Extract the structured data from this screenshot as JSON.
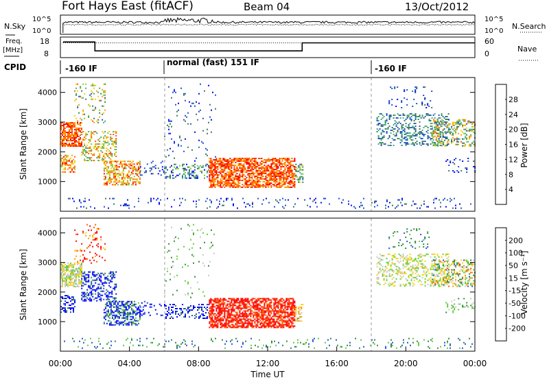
{
  "header": {
    "title": "Fort Hays East (fitACF)",
    "beam": "Beam 04",
    "date": "13/Oct/2012"
  },
  "noise_panel": {
    "left_label": "N.Sky",
    "right_label": "N.Search",
    "left_ticks": [
      "10^5",
      "10^0"
    ],
    "right_ticks": [
      "10^5",
      "10^0"
    ]
  },
  "freq_panel": {
    "left_label_line1": "Freq.",
    "left_label_line2": "[MHz]",
    "right_label": "Nave",
    "left_ticks": [
      "18",
      "8"
    ],
    "right_ticks": [
      "60",
      "0"
    ]
  },
  "cpid": {
    "label": "CPID",
    "segments": [
      {
        "start_hour": 0,
        "text": "-160 IF"
      },
      {
        "start_hour": 6,
        "text": "normal (fast) 151 IF"
      },
      {
        "start_hour": 18,
        "text": "-160 IF"
      }
    ]
  },
  "xaxis": {
    "label": "Time UT",
    "ticks": [
      "00:00",
      "04:00",
      "08:00",
      "12:00",
      "16:00",
      "20:00",
      "00:00"
    ],
    "range_hours": [
      0,
      24
    ]
  },
  "colors": {
    "power": [
      "#0000ff",
      "#1f4fcf",
      "#3a7a5a",
      "#48a87c",
      "#7ccd3c",
      "#f0d000",
      "#ff9a00",
      "#ff5a00",
      "#ff0000"
    ],
    "velocity": [
      "#0000ff",
      "#244fcf",
      "#2e8a3a",
      "#5ccc3c",
      "#c8c8c0",
      "#ffd000",
      "#ff9a00",
      "#ff5a00",
      "#ff0000"
    ]
  },
  "chart_data": [
    {
      "type": "line",
      "name": "noise",
      "series": [
        {
          "name": "N.Sky",
          "style": "solid"
        },
        {
          "name": "N.Search",
          "style": "dotted"
        }
      ]
    },
    {
      "type": "line",
      "name": "frequency",
      "ylim": [
        8,
        18
      ],
      "series": [
        {
          "name": "Freq.",
          "style": "solid",
          "points": [
            [
              0.15,
              16
            ],
            [
              2,
              16
            ],
            [
              2,
              11
            ],
            [
              14,
              11
            ],
            [
              14,
              15.5
            ],
            [
              24,
              15.5
            ]
          ]
        },
        {
          "name": "Nave",
          "style": "dotted",
          "ylim": [
            0,
            60
          ],
          "points": [
            [
              0.15,
              45
            ],
            [
              24,
              45
            ]
          ]
        }
      ]
    },
    {
      "type": "heatmap",
      "name": "power",
      "ylabel": "Slant Range [km]",
      "ylim": [
        0,
        4500
      ],
      "yticks": [
        1000,
        2000,
        3000,
        4000
      ],
      "colorbar": {
        "label": "Power [dB]",
        "ticks": [
          "28",
          "24",
          "20",
          "16",
          "12",
          "8",
          "4"
        ]
      }
    },
    {
      "type": "heatmap",
      "name": "velocity",
      "ylabel": "Slant Range [km]",
      "ylim": [
        0,
        4500
      ],
      "yticks": [
        1000,
        2000,
        3000,
        4000
      ],
      "colorbar": {
        "label": "Velocity [m s⁻¹]",
        "ticks": [
          "200",
          "100",
          "50",
          "15",
          "-15",
          "-50",
          "-100",
          "-200"
        ]
      }
    }
  ]
}
